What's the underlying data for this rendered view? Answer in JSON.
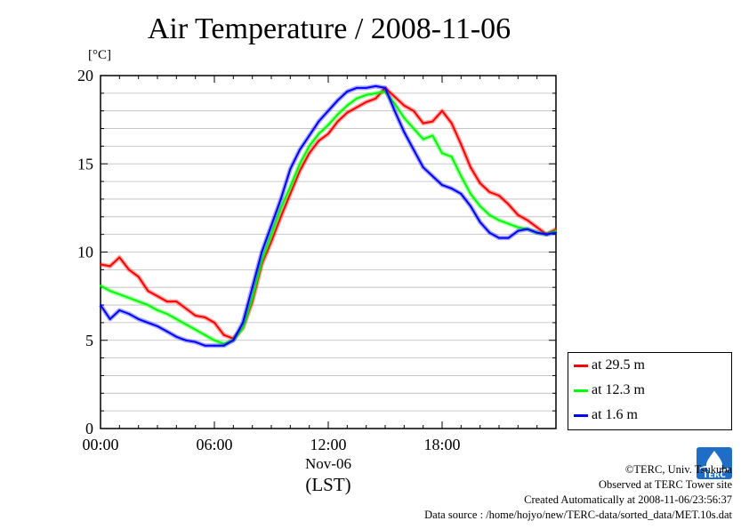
{
  "chart_data": {
    "type": "line",
    "title": "Air Temperature / 2008-11-06",
    "ylabel": "[°C]",
    "xlabel": "(LST)",
    "x_date_label": "Nov-06",
    "xlim": [
      0,
      24
    ],
    "ylim": [
      0,
      20
    ],
    "y_ticks": [
      0,
      5,
      10,
      15,
      20
    ],
    "x_ticks": [
      {
        "hour": 0,
        "label": "00:00"
      },
      {
        "hour": 6,
        "label": "06:00"
      },
      {
        "hour": 12,
        "label": "12:00"
      },
      {
        "hour": 18,
        "label": "18:00"
      }
    ],
    "grid": true,
    "legend_position": "lower-right, outside plot",
    "x_unit": "hour (LST)",
    "series": [
      {
        "name": "at 29.5 m",
        "color": "#ff0000",
        "x": [
          0,
          0.5,
          1,
          1.5,
          2,
          2.5,
          3,
          3.5,
          4,
          4.5,
          5,
          5.5,
          6,
          6.5,
          7,
          7.5,
          8,
          8.5,
          9,
          9.5,
          10,
          10.5,
          11,
          11.5,
          12,
          12.5,
          13,
          13.5,
          14,
          14.5,
          15,
          15.5,
          16,
          16.5,
          17,
          17.5,
          18,
          18.5,
          19,
          19.5,
          20,
          20.5,
          21,
          21.5,
          22,
          22.5,
          23,
          23.5,
          24
        ],
        "y": [
          9.3,
          9.2,
          9.7,
          9.0,
          8.6,
          7.8,
          7.5,
          7.2,
          7.2,
          6.8,
          6.4,
          6.3,
          6.0,
          5.3,
          5.1,
          5.7,
          7.2,
          9.3,
          10.6,
          12.0,
          13.3,
          14.6,
          15.6,
          16.3,
          16.7,
          17.4,
          17.9,
          18.2,
          18.5,
          18.7,
          19.3,
          18.8,
          18.3,
          18.0,
          17.3,
          17.4,
          18.0,
          17.3,
          16.1,
          14.8,
          13.9,
          13.4,
          13.2,
          12.7,
          12.1,
          11.8,
          11.4,
          11.0,
          11.3
        ]
      },
      {
        "name": "at 12.3 m",
        "color": "#00ff00",
        "x": [
          0,
          0.5,
          1,
          1.5,
          2,
          2.5,
          3,
          3.5,
          4,
          4.5,
          5,
          5.5,
          6,
          6.5,
          7,
          7.5,
          8,
          8.5,
          9,
          9.5,
          10,
          10.5,
          11,
          11.5,
          12,
          12.5,
          13,
          13.5,
          14,
          14.5,
          15,
          15.5,
          16,
          16.5,
          17,
          17.5,
          18,
          18.5,
          19,
          19.5,
          20,
          20.5,
          21,
          21.5,
          22,
          22.5,
          23,
          23.5,
          24
        ],
        "y": [
          8.1,
          7.8,
          7.6,
          7.4,
          7.2,
          7.0,
          6.7,
          6.5,
          6.2,
          5.9,
          5.6,
          5.3,
          5.0,
          4.8,
          5.0,
          5.7,
          7.4,
          9.5,
          11.0,
          12.5,
          13.7,
          15.0,
          16.0,
          16.7,
          17.2,
          17.8,
          18.3,
          18.7,
          18.9,
          19.0,
          19.1,
          18.4,
          17.6,
          17.0,
          16.4,
          16.6,
          15.6,
          15.4,
          14.3,
          13.3,
          12.6,
          12.1,
          11.8,
          11.6,
          11.4,
          11.3,
          11.1,
          11.0,
          11.2
        ]
      },
      {
        "name": "at 1.6 m",
        "color": "#0000ff",
        "x": [
          0,
          0.5,
          1,
          1.5,
          2,
          2.5,
          3,
          3.5,
          4,
          4.5,
          5,
          5.5,
          6,
          6.5,
          7,
          7.5,
          8,
          8.5,
          9,
          9.5,
          10,
          10.5,
          11,
          11.5,
          12,
          12.5,
          13,
          13.5,
          14,
          14.5,
          15,
          15.5,
          16,
          16.5,
          17,
          17.5,
          18,
          18.5,
          19,
          19.5,
          20,
          20.5,
          21,
          21.5,
          22,
          22.5,
          23,
          23.5,
          24
        ],
        "y": [
          7.0,
          6.2,
          6.7,
          6.5,
          6.2,
          6.0,
          5.8,
          5.5,
          5.2,
          5.0,
          4.9,
          4.7,
          4.7,
          4.7,
          5.0,
          6.0,
          8.0,
          10.0,
          11.5,
          13.0,
          14.7,
          15.8,
          16.6,
          17.4,
          18.0,
          18.6,
          19.1,
          19.3,
          19.3,
          19.4,
          19.3,
          18.0,
          16.8,
          15.8,
          14.8,
          14.3,
          13.8,
          13.6,
          13.3,
          12.6,
          11.7,
          11.1,
          10.8,
          10.8,
          11.2,
          11.3,
          11.1,
          11.0,
          11.1
        ]
      }
    ]
  },
  "credits": {
    "copyright": "©TERC, Univ. Tsukuba",
    "site": "Observed at TERC Tower site",
    "created": "Created Automatically at 2008-11-06/23:56:37",
    "source": "Data source : /home/hojyo/new/TERC-data/sorted_data/MET.10s.dat"
  },
  "logo_text": "TERC",
  "colors": {
    "background": "#ffffff",
    "grid": "#bbbbbb",
    "axis": "#000000"
  }
}
